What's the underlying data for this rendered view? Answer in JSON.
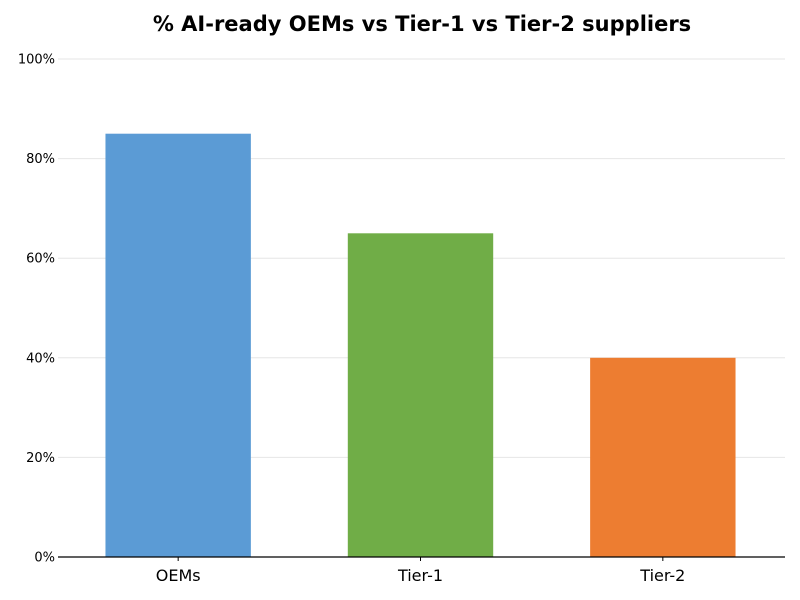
{
  "chart_data": {
    "type": "bar",
    "title": "% AI-ready OEMs vs Tier-1 vs Tier-2 suppliers",
    "categories": [
      "OEMs",
      "Tier-1",
      "Tier-2"
    ],
    "values": [
      85,
      65,
      40
    ],
    "colors": [
      "#5b9bd5",
      "#70ad47",
      "#ed7d31"
    ],
    "xlabel": "",
    "ylabel": "",
    "ylim": [
      0,
      100
    ],
    "yticks": [
      "0%",
      "20%",
      "40%",
      "60%",
      "80%",
      "100%"
    ],
    "grid": "horizontal",
    "legend": "none"
  }
}
